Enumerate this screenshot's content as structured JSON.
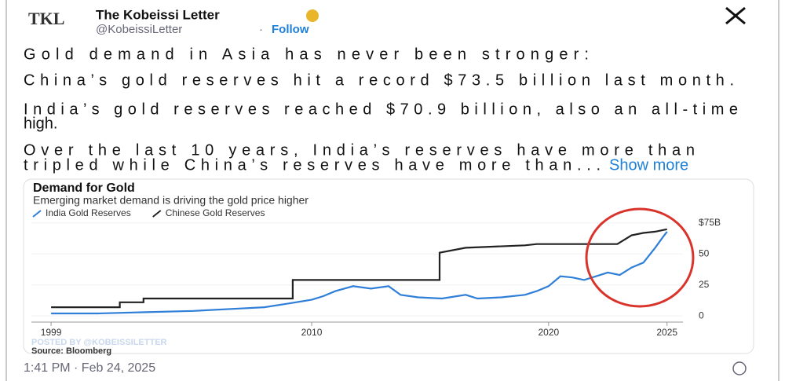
{
  "logo": "TKL",
  "author": {
    "name": "The Kobeissi Letter",
    "handle": "@KobeissiLetter",
    "separator": "·",
    "follow": "Follow"
  },
  "post": {
    "lines": [
      "Gold demand in Asia has never been stronger:",
      "China’s gold reserves hit a record $73.5 billion last month.",
      "India’s gold reserves reached $70.9 billion, also an all-time",
      "high.",
      "Over the last 10 years, India’s reserves have more than",
      "tripled while China’s reserves have more than..."
    ],
    "show_more": "Show more"
  },
  "timestamp": "1:41 PM · Feb 24, 2025",
  "chart_data": {
    "type": "line",
    "title": "Demand for Gold",
    "subtitle": "Emerging market demand is driving the gold price higher",
    "watermark": "POSTED BY @KOBEISSILETTER",
    "source": "Source: Bloomberg",
    "xlim": [
      1998.7,
      2026.5
    ],
    "xticks": [
      1999,
      2010,
      2020,
      2025
    ],
    "ylim": [
      -5,
      80
    ],
    "yticks": [
      0,
      25,
      50,
      {
        "value": 75,
        "label": "$75B"
      }
    ],
    "series": [
      {
        "name": "India Gold Reserves",
        "color": "#2f7fd8",
        "x": [
          1999,
          2001,
          2003,
          2005,
          2007,
          2008,
          2009,
          2010,
          2010.5,
          2011,
          2011.75,
          2012.5,
          2013.25,
          2013.75,
          2014.5,
          2015.5,
          2016.5,
          2017,
          2018,
          2019,
          2019.5,
          2020,
          2020.5,
          2021,
          2021.5,
          2022,
          2022.5,
          2023,
          2023.5,
          2024,
          2024.5,
          2024.8,
          2025
        ],
        "values": [
          2,
          2,
          3,
          4,
          6,
          7,
          10,
          13,
          16,
          20,
          24,
          22,
          24,
          17,
          15,
          14,
          17,
          14,
          15,
          17,
          20,
          24,
          32,
          31,
          29,
          32,
          35,
          33,
          39,
          43,
          55,
          63,
          68
        ]
      },
      {
        "name": "Chinese Gold Reserves",
        "color": "#222222",
        "x": [
          1999,
          2001.9,
          2001.9,
          2002.9,
          2002.9,
          2009.2,
          2009.2,
          2015.4,
          2015.4,
          2016.5,
          2019,
          2019.5,
          2022.9,
          2023.5,
          2024,
          2024.5,
          2025
        ],
        "values": [
          7,
          7,
          11,
          11,
          14,
          14,
          29,
          29,
          51,
          55,
          57,
          58,
          58,
          65,
          67,
          68,
          70
        ]
      }
    ]
  }
}
